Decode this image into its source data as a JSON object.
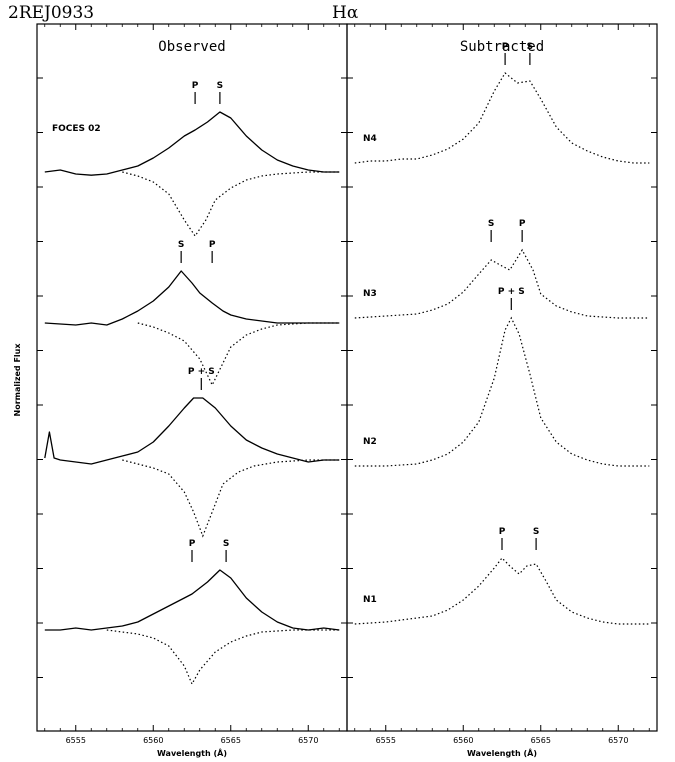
{
  "header": {
    "object": "2REJ0933",
    "line_label": "Hα"
  },
  "chart_data": [
    {
      "type": "line",
      "title": "Observed",
      "xlabel": "Wavelength (Å)",
      "ylabel": "Normalized Flux",
      "xlim": [
        6552.5,
        6572.5
      ],
      "xticks": [
        6555,
        6560,
        6565,
        6570
      ],
      "annotation": "FOCES 02",
      "spectra": [
        {
          "markers": [
            {
              "label": "P",
              "x": 6562.7
            },
            {
              "label": "S",
              "x": 6564.3
            }
          ],
          "solid": [
            [
              6553,
              0
            ],
            [
              6554,
              0.05
            ],
            [
              6555,
              -0.05
            ],
            [
              6556,
              -0.08
            ],
            [
              6557,
              -0.05
            ],
            [
              6558,
              0.05
            ],
            [
              6559,
              0.15
            ],
            [
              6560,
              0.35
            ],
            [
              6561,
              0.6
            ],
            [
              6562,
              0.9
            ],
            [
              6562.7,
              1.05
            ],
            [
              6563.5,
              1.25
            ],
            [
              6564.3,
              1.5
            ],
            [
              6565,
              1.35
            ],
            [
              6566,
              0.9
            ],
            [
              6567,
              0.55
            ],
            [
              6568,
              0.3
            ],
            [
              6569,
              0.15
            ],
            [
              6570,
              0.05
            ],
            [
              6571,
              0
            ],
            [
              6572,
              0
            ]
          ],
          "dotted": [
            [
              6558,
              0
            ],
            [
              6559,
              -0.1
            ],
            [
              6560,
              -0.25
            ],
            [
              6561,
              -0.55
            ],
            [
              6562,
              -1.2
            ],
            [
              6562.7,
              -1.6
            ],
            [
              6563.4,
              -1.2
            ],
            [
              6564,
              -0.7
            ],
            [
              6565,
              -0.4
            ],
            [
              6566,
              -0.2
            ],
            [
              6567,
              -0.1
            ],
            [
              6568,
              -0.05
            ],
            [
              6570,
              0
            ],
            [
              6572,
              0
            ]
          ]
        },
        {
          "markers": [
            {
              "label": "S",
              "x": 6561.8
            },
            {
              "label": "P",
              "x": 6563.8
            }
          ],
          "solid": [
            [
              6553,
              0
            ],
            [
              6555,
              -0.05
            ],
            [
              6556,
              0
            ],
            [
              6557,
              -0.05
            ],
            [
              6558,
              0.1
            ],
            [
              6559,
              0.3
            ],
            [
              6560,
              0.55
            ],
            [
              6561,
              0.9
            ],
            [
              6561.8,
              1.3
            ],
            [
              6562.5,
              1.0
            ],
            [
              6563,
              0.75
            ],
            [
              6563.8,
              0.5
            ],
            [
              6564.5,
              0.3
            ],
            [
              6565,
              0.2
            ],
            [
              6566,
              0.1
            ],
            [
              6567,
              0.05
            ],
            [
              6568,
              0
            ],
            [
              6570,
              0
            ],
            [
              6572,
              0
            ]
          ],
          "dotted": [
            [
              6559,
              0
            ],
            [
              6560,
              -0.1
            ],
            [
              6561,
              -0.25
            ],
            [
              6562,
              -0.45
            ],
            [
              6563,
              -0.9
            ],
            [
              6563.8,
              -1.55
            ],
            [
              6564.5,
              -1.0
            ],
            [
              6565,
              -0.6
            ],
            [
              6566,
              -0.3
            ],
            [
              6567,
              -0.15
            ],
            [
              6568,
              -0.05
            ],
            [
              6570,
              0
            ],
            [
              6572,
              0
            ]
          ]
        },
        {
          "markers": [
            {
              "label": "P + S",
              "x": 6563.1
            }
          ],
          "solid": [
            [
              6553,
              0.05
            ],
            [
              6553.3,
              0.7
            ],
            [
              6553.6,
              0.05
            ],
            [
              6554,
              0
            ],
            [
              6555,
              -0.05
            ],
            [
              6556,
              -0.1
            ],
            [
              6557,
              0
            ],
            [
              6558,
              0.1
            ],
            [
              6559,
              0.2
            ],
            [
              6560,
              0.45
            ],
            [
              6561,
              0.85
            ],
            [
              6562,
              1.3
            ],
            [
              6562.6,
              1.55
            ],
            [
              6563.2,
              1.55
            ],
            [
              6564,
              1.3
            ],
            [
              6565,
              0.85
            ],
            [
              6566,
              0.5
            ],
            [
              6567,
              0.3
            ],
            [
              6568,
              0.15
            ],
            [
              6569,
              0.05
            ],
            [
              6570,
              -0.05
            ],
            [
              6571,
              0
            ],
            [
              6572,
              0
            ]
          ],
          "dotted": [
            [
              6558,
              0
            ],
            [
              6559,
              -0.1
            ],
            [
              6560,
              -0.2
            ],
            [
              6561,
              -0.35
            ],
            [
              6562,
              -0.8
            ],
            [
              6562.6,
              -1.3
            ],
            [
              6563.2,
              -1.9
            ],
            [
              6563.8,
              -1.3
            ],
            [
              6564.5,
              -0.6
            ],
            [
              6565.5,
              -0.3
            ],
            [
              6566.5,
              -0.15
            ],
            [
              6568,
              -0.05
            ],
            [
              6570,
              0
            ],
            [
              6572,
              0
            ]
          ]
        },
        {
          "markers": [
            {
              "label": "P",
              "x": 6562.5
            },
            {
              "label": "S",
              "x": 6564.7
            }
          ],
          "solid": [
            [
              6553,
              0
            ],
            [
              6554,
              0
            ],
            [
              6555,
              0.05
            ],
            [
              6556,
              0
            ],
            [
              6557,
              0.05
            ],
            [
              6558,
              0.1
            ],
            [
              6559,
              0.2
            ],
            [
              6560,
              0.4
            ],
            [
              6561,
              0.6
            ],
            [
              6562,
              0.8
            ],
            [
              6562.5,
              0.9
            ],
            [
              6563.5,
              1.2
            ],
            [
              6564.3,
              1.5
            ],
            [
              6565,
              1.3
            ],
            [
              6566,
              0.8
            ],
            [
              6567,
              0.45
            ],
            [
              6568,
              0.2
            ],
            [
              6569,
              0.05
            ],
            [
              6570,
              0
            ],
            [
              6571,
              0.05
            ],
            [
              6572,
              0
            ]
          ],
          "dotted": [
            [
              6557,
              0
            ],
            [
              6558,
              -0.05
            ],
            [
              6559,
              -0.1
            ],
            [
              6560,
              -0.2
            ],
            [
              6561,
              -0.4
            ],
            [
              6562,
              -0.9
            ],
            [
              6562.5,
              -1.35
            ],
            [
              6563,
              -1.0
            ],
            [
              6564,
              -0.55
            ],
            [
              6565,
              -0.3
            ],
            [
              6566,
              -0.15
            ],
            [
              6567,
              -0.05
            ],
            [
              6569,
              0
            ],
            [
              6572,
              0
            ]
          ]
        }
      ]
    },
    {
      "type": "line",
      "title": "Subtracted",
      "xlabel": "Wavelength (Å)",
      "xlim": [
        6552.5,
        6572.5
      ],
      "xticks": [
        6555,
        6560,
        6565,
        6570
      ],
      "spectra": [
        {
          "label": "N4",
          "markers": [
            {
              "label": "P",
              "x": 6562.7
            },
            {
              "label": "S",
              "x": 6564.3
            }
          ],
          "dotted": [
            [
              6553,
              0
            ],
            [
              6554,
              0.05
            ],
            [
              6555,
              0.05
            ],
            [
              6556,
              0.1
            ],
            [
              6557,
              0.1
            ],
            [
              6558,
              0.2
            ],
            [
              6559,
              0.35
            ],
            [
              6560,
              0.6
            ],
            [
              6561,
              1.0
            ],
            [
              6562,
              1.8
            ],
            [
              6562.7,
              2.25
            ],
            [
              6563.5,
              2.0
            ],
            [
              6564.3,
              2.05
            ],
            [
              6565,
              1.6
            ],
            [
              6566,
              0.9
            ],
            [
              6567,
              0.5
            ],
            [
              6568,
              0.3
            ],
            [
              6569,
              0.15
            ],
            [
              6570,
              0.05
            ],
            [
              6571,
              0
            ],
            [
              6572,
              0
            ]
          ]
        },
        {
          "label": "N3",
          "markers": [
            {
              "label": "S",
              "x": 6561.8
            },
            {
              "label": "P",
              "x": 6563.8
            }
          ],
          "dotted": [
            [
              6553,
              0
            ],
            [
              6555,
              0.05
            ],
            [
              6557,
              0.1
            ],
            [
              6558,
              0.2
            ],
            [
              6559,
              0.35
            ],
            [
              6560,
              0.65
            ],
            [
              6561,
              1.1
            ],
            [
              6561.8,
              1.45
            ],
            [
              6562.5,
              1.3
            ],
            [
              6563,
              1.2
            ],
            [
              6563.8,
              1.7
            ],
            [
              6564.5,
              1.2
            ],
            [
              6565,
              0.6
            ],
            [
              6566,
              0.3
            ],
            [
              6567,
              0.15
            ],
            [
              6568,
              0.05
            ],
            [
              6570,
              0
            ],
            [
              6572,
              0
            ]
          ]
        },
        {
          "label": "N2",
          "markers": [
            {
              "label": "P + S",
              "x": 6563.1
            }
          ],
          "dotted": [
            [
              6553,
              0
            ],
            [
              6555,
              0
            ],
            [
              6557,
              0.05
            ],
            [
              6558,
              0.15
            ],
            [
              6559,
              0.3
            ],
            [
              6560,
              0.6
            ],
            [
              6561,
              1.1
            ],
            [
              6562,
              2.2
            ],
            [
              6562.7,
              3.4
            ],
            [
              6563.1,
              3.7
            ],
            [
              6563.6,
              3.3
            ],
            [
              6564.3,
              2.3
            ],
            [
              6565,
              1.2
            ],
            [
              6566,
              0.6
            ],
            [
              6567,
              0.3
            ],
            [
              6568,
              0.15
            ],
            [
              6569,
              0.05
            ],
            [
              6570,
              0
            ],
            [
              6572,
              0
            ]
          ]
        },
        {
          "label": "N1",
          "markers": [
            {
              "label": "P",
              "x": 6562.5
            },
            {
              "label": "S",
              "x": 6564.7
            }
          ],
          "dotted": [
            [
              6553,
              0
            ],
            [
              6555,
              0.05
            ],
            [
              6557,
              0.15
            ],
            [
              6558,
              0.2
            ],
            [
              6559,
              0.35
            ],
            [
              6560,
              0.6
            ],
            [
              6561,
              0.95
            ],
            [
              6562,
              1.4
            ],
            [
              6562.5,
              1.65
            ],
            [
              6563,
              1.45
            ],
            [
              6563.6,
              1.25
            ],
            [
              6564.1,
              1.45
            ],
            [
              6564.7,
              1.5
            ],
            [
              6565.3,
              1.1
            ],
            [
              6566,
              0.6
            ],
            [
              6567,
              0.3
            ],
            [
              6568,
              0.15
            ],
            [
              6569,
              0.05
            ],
            [
              6570,
              0
            ],
            [
              6572,
              0
            ]
          ]
        }
      ]
    }
  ]
}
